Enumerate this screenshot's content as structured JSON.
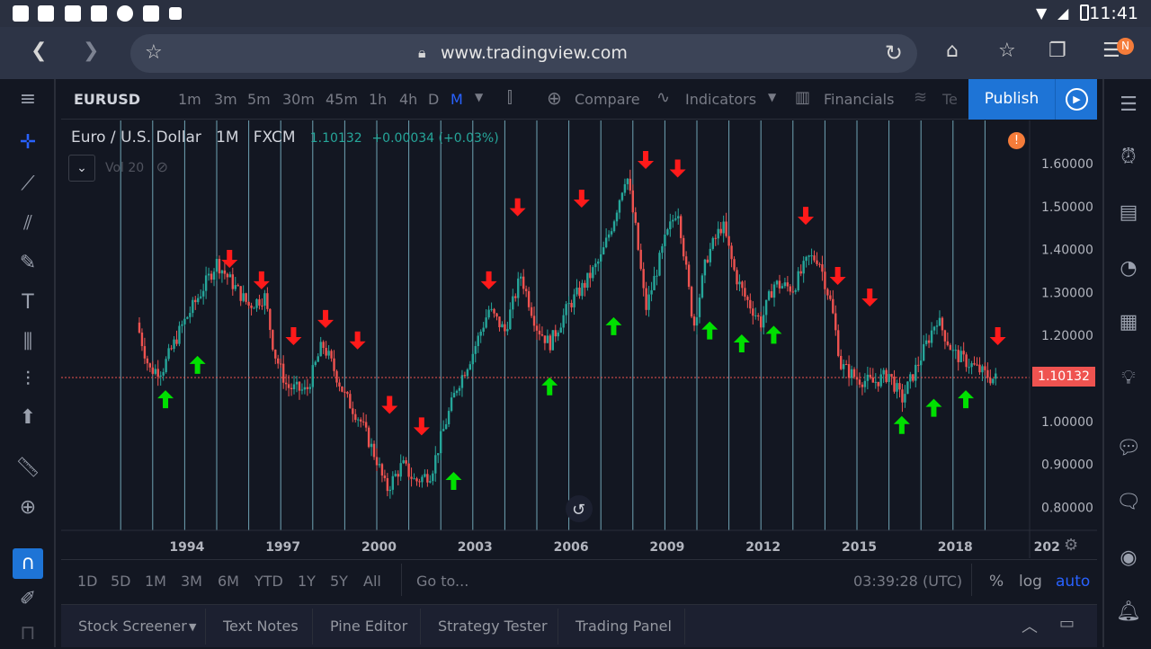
{
  "status": {
    "time": "11:41"
  },
  "browser": {
    "url": "www.tradingview.com",
    "badge": "N"
  },
  "toolbar": {
    "symbol": "EURUSD",
    "intervals": [
      "1m",
      "3m",
      "5m",
      "30m",
      "45m",
      "1h",
      "4h",
      "D",
      "M"
    ],
    "active_interval": "M",
    "compare": "Compare",
    "indicators": "Indicators",
    "financials": "Financials",
    "templates": "Te",
    "publish": "Publish"
  },
  "legend": {
    "title": "Euro / U.S. Dollar",
    "interval": "1M",
    "exchange": "FXCM",
    "price": "1.10132",
    "change": "+0.00034 (+0.03%)",
    "vol": "Vol 20"
  },
  "chart_data": {
    "type": "candlestick",
    "x_ticks": [
      "1994",
      "1997",
      "2000",
      "2003",
      "2006",
      "2009",
      "2012",
      "2015",
      "2018",
      "202"
    ],
    "y_ticks": [
      "1.60000",
      "1.50000",
      "1.40000",
      "1.30000",
      "1.20000",
      "1.10000",
      "1.00000",
      "0.90000",
      "0.80000"
    ],
    "ylim": [
      0.75,
      1.65
    ],
    "last_price": "1.10132",
    "price_path": [
      [
        1993.0,
        1.23
      ],
      [
        1993.4,
        1.12
      ],
      [
        1993.8,
        1.12
      ],
      [
        1994.4,
        1.22
      ],
      [
        1995.0,
        1.3
      ],
      [
        1995.5,
        1.37
      ],
      [
        1996.0,
        1.32
      ],
      [
        1996.5,
        1.27
      ],
      [
        1997.0,
        1.29
      ],
      [
        1997.3,
        1.16
      ],
      [
        1997.7,
        1.08
      ],
      [
        1998.3,
        1.07
      ],
      [
        1998.8,
        1.18
      ],
      [
        1999.0,
        1.15
      ],
      [
        1999.5,
        1.06
      ],
      [
        2000.0,
        1.0
      ],
      [
        2000.5,
        0.91
      ],
      [
        2000.8,
        0.84
      ],
      [
        2001.3,
        0.9
      ],
      [
        2001.7,
        0.86
      ],
      [
        2002.2,
        0.88
      ],
      [
        2002.5,
        0.96
      ],
      [
        2003.0,
        1.08
      ],
      [
        2003.5,
        1.16
      ],
      [
        2004.0,
        1.26
      ],
      [
        2004.5,
        1.21
      ],
      [
        2005.0,
        1.34
      ],
      [
        2005.5,
        1.22
      ],
      [
        2005.9,
        1.18
      ],
      [
        2006.5,
        1.27
      ],
      [
        2007.0,
        1.32
      ],
      [
        2007.5,
        1.38
      ],
      [
        2007.9,
        1.47
      ],
      [
        2008.3,
        1.58
      ],
      [
        2008.6,
        1.44
      ],
      [
        2008.9,
        1.26
      ],
      [
        2009.2,
        1.34
      ],
      [
        2009.5,
        1.42
      ],
      [
        2009.9,
        1.5
      ],
      [
        2010.4,
        1.22
      ],
      [
        2010.8,
        1.38
      ],
      [
        2011.3,
        1.46
      ],
      [
        2011.7,
        1.34
      ],
      [
        2012.0,
        1.29
      ],
      [
        2012.5,
        1.23
      ],
      [
        2012.9,
        1.32
      ],
      [
        2013.5,
        1.31
      ],
      [
        2014.0,
        1.38
      ],
      [
        2014.3,
        1.38
      ],
      [
        2014.7,
        1.27
      ],
      [
        2015.0,
        1.13
      ],
      [
        2015.5,
        1.1
      ],
      [
        2016.0,
        1.09
      ],
      [
        2016.5,
        1.11
      ],
      [
        2016.9,
        1.05
      ],
      [
        2017.5,
        1.15
      ],
      [
        2018.0,
        1.24
      ],
      [
        2018.5,
        1.16
      ],
      [
        2018.9,
        1.14
      ],
      [
        2019.3,
        1.12
      ],
      [
        2019.7,
        1.1
      ],
      [
        2019.9,
        1.1
      ]
    ],
    "sell_signals": [
      [
        1995.9,
        1.37
      ],
      [
        1996.9,
        1.32
      ],
      [
        1997.9,
        1.19
      ],
      [
        1998.9,
        1.23
      ],
      [
        1999.9,
        1.18
      ],
      [
        2000.9,
        1.03
      ],
      [
        2001.9,
        0.98
      ],
      [
        2004.0,
        1.32
      ],
      [
        2004.9,
        1.49
      ],
      [
        2006.9,
        1.51
      ],
      [
        2008.9,
        1.6
      ],
      [
        2009.9,
        1.58
      ],
      [
        2013.9,
        1.47
      ],
      [
        2014.9,
        1.33
      ],
      [
        2015.9,
        1.28
      ],
      [
        2019.9,
        1.19
      ]
    ],
    "buy_signals": [
      [
        1993.9,
        1.06
      ],
      [
        1994.9,
        1.14
      ],
      [
        2002.9,
        0.87
      ],
      [
        2005.9,
        1.09
      ],
      [
        2007.9,
        1.23
      ],
      [
        2010.9,
        1.22
      ],
      [
        2011.9,
        1.19
      ],
      [
        2012.9,
        1.21
      ],
      [
        2016.9,
        1.0
      ],
      [
        2017.9,
        1.04
      ],
      [
        2018.9,
        1.06
      ]
    ],
    "vertical_lines_at": [
      1992.5,
      1993.5,
      1994.5,
      1995.5,
      1996.5,
      1997.5,
      1998.5,
      1999.5,
      2000.5,
      2001.5,
      2002.5,
      2003.5,
      2004.5,
      2005.5,
      2006.5,
      2007.5,
      2008.5,
      2009.5,
      2010.5,
      2011.5,
      2012.5,
      2013.5,
      2014.5,
      2015.5,
      2016.5,
      2017.5,
      2018.5,
      2019.5
    ]
  },
  "ranges": [
    "1D",
    "5D",
    "1M",
    "3M",
    "6M",
    "YTD",
    "1Y",
    "5Y",
    "All"
  ],
  "goto": "Go to...",
  "clock": "03:39:28 (UTC)",
  "scale": {
    "pct": "%",
    "log": "log",
    "auto": "auto"
  },
  "bottom_tabs": [
    "Stock Screener",
    "Text Notes",
    "Pine Editor",
    "Strategy Tester",
    "Trading Panel"
  ],
  "colors": {
    "up": "#26a69a",
    "down": "#ef5350",
    "buy_arrow": "#00e000",
    "sell_arrow": "#ff1a1a",
    "accent": "#1e74d6"
  }
}
